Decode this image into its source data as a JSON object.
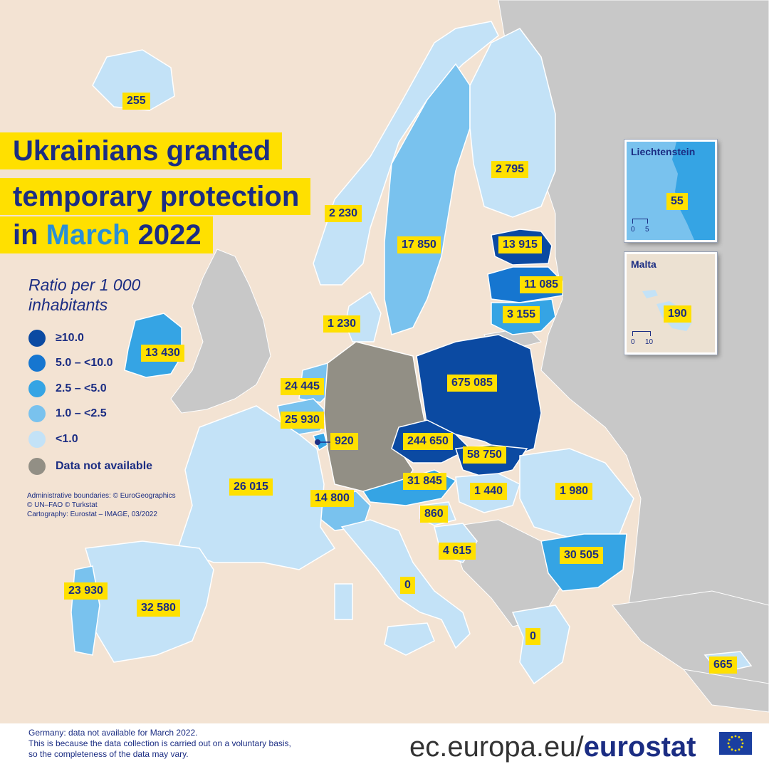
{
  "title": {
    "line1": "Ukrainians granted",
    "line2": "temporary protection",
    "line3_pre": "in",
    "line3_accent": "March",
    "line3_post": "2022"
  },
  "legend": {
    "title": "Ratio per 1 000 inhabitants",
    "items": [
      {
        "label": "≥10.0",
        "color": "#0b4aa2"
      },
      {
        "label": "5.0 – <10.0",
        "color": "#1676d0"
      },
      {
        "label": "2.5 – <5.0",
        "color": "#35a4e4"
      },
      {
        "label": "1.0 – <2.5",
        "color": "#79c2ee"
      },
      {
        "label": "<1.0",
        "color": "#c3e2f7"
      },
      {
        "label": "Data not available",
        "color": "#928f85"
      }
    ]
  },
  "credits": [
    "Administrative boundaries: © EuroGeographics",
    "© UN–FAO © Turkstat",
    "Cartography: Eurostat – IMAGE, 03/2022"
  ],
  "values": {
    "iceland": "255",
    "norway": "2 230",
    "sweden": "17 850",
    "finland": "2 795",
    "estonia": "13 915",
    "latvia": "11 085",
    "lithuania": "3 155",
    "denmark": "1 230",
    "ireland": "13 430",
    "netherlands": "24 445",
    "belgium": "25 930",
    "luxembourg": "920",
    "france": "26 015",
    "switzerland": "14 800",
    "austria": "31 845",
    "czechia": "244 650",
    "slovakia": "58 750",
    "poland": "675 085",
    "hungary": "1 440",
    "romania": "1 980",
    "slovenia": "860",
    "croatia": "4 615",
    "bulgaria": "30 505",
    "italy": "0",
    "greece": "0",
    "cyprus": "665",
    "portugal": "23 930",
    "spain": "32 580"
  },
  "insets": {
    "liechtenstein": {
      "title": "Liechtenstein",
      "value": "55",
      "scale_start": "0",
      "scale_end": "5"
    },
    "malta": {
      "title": "Malta",
      "value": "190",
      "scale_start": "0",
      "scale_end": "10"
    }
  },
  "footer": {
    "notes": [
      "Germany: data not available for March 2022.",
      "This is because the data collection is carried out on a voluntary basis,",
      "so the completeness of the data may vary."
    ],
    "brand_pre": "ec.europa.eu/",
    "brand_bold": "eurostat"
  },
  "colors": {
    "sea": "#f3e3d3",
    "non_eu_land": "#c8c8c8",
    "label_bg": "#ffe000",
    "label_text": "#1b2d83"
  }
}
